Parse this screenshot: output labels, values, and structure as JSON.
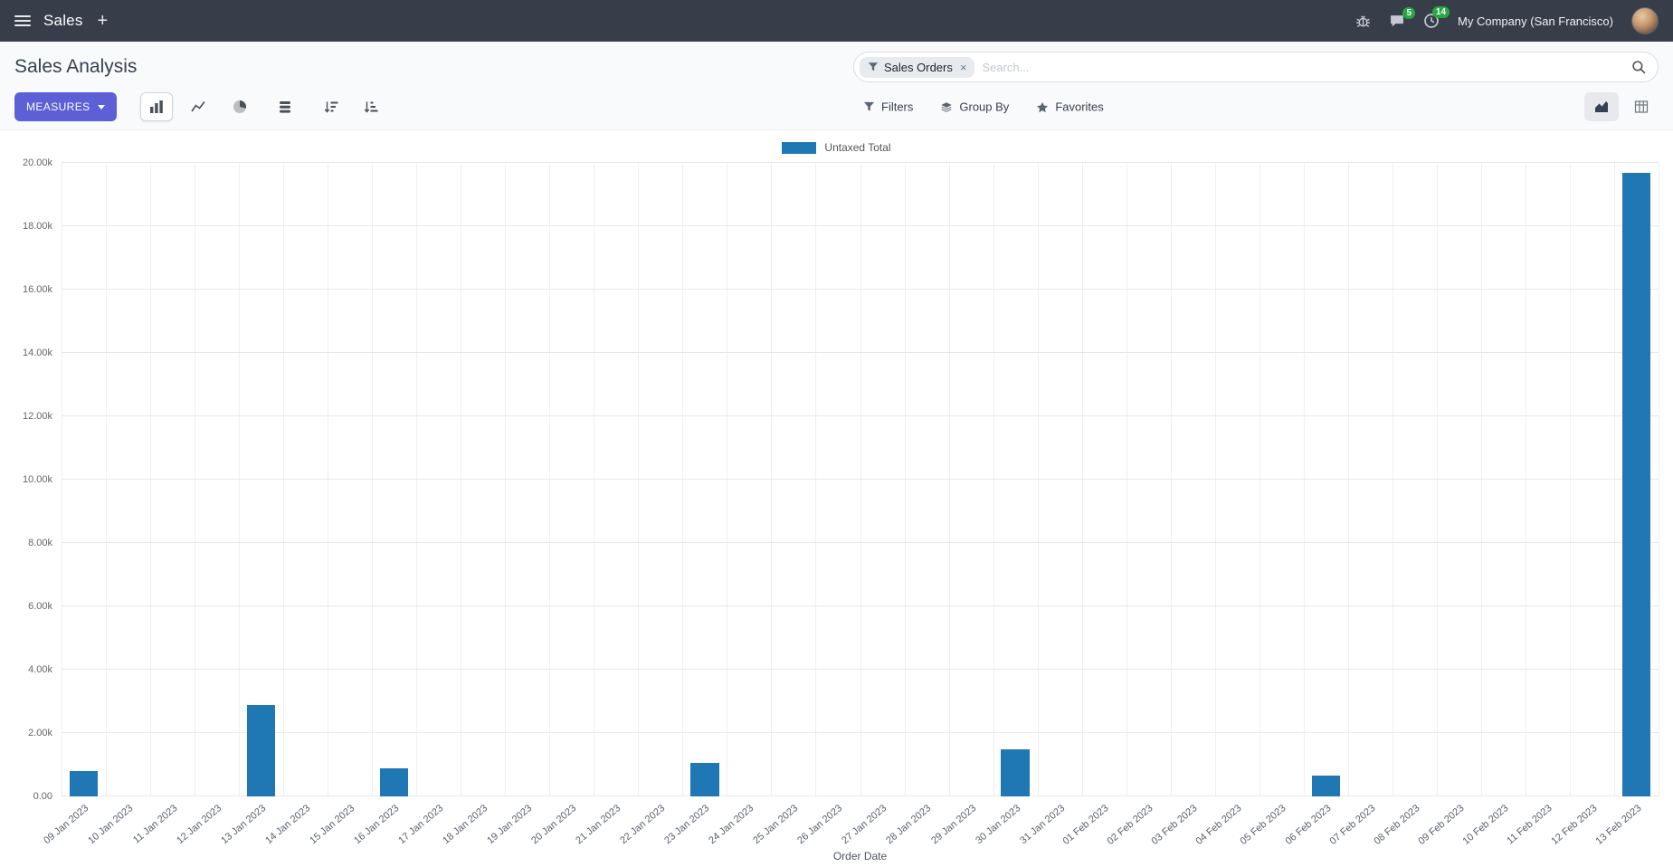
{
  "colors": {
    "topbar": "#373e4a",
    "accent": "#5d5fd6",
    "bar": "#1f77b4",
    "badge": "#28a745"
  },
  "topbar": {
    "app_name": "Sales",
    "new_label": "+",
    "messages_badge": "5",
    "activities_badge": "14",
    "company": "My Company (San Francisco)"
  },
  "control_panel": {
    "title": "Sales Analysis",
    "measures_label": "MEASURES",
    "search": {
      "facet_label": "Sales Orders",
      "placeholder": "Search...",
      "remove": "×"
    },
    "filters_label": "Filters",
    "group_by_label": "Group By",
    "favorites_label": "Favorites"
  },
  "chart_data": {
    "type": "bar",
    "title": "",
    "legend": [
      "Untaxed Total"
    ],
    "legend_position": "top",
    "grid": true,
    "xlabel": "Order Date",
    "ylabel": "",
    "ylim": [
      0,
      20000
    ],
    "bar_color": "#1f77b4",
    "yticks": [
      {
        "value": 0,
        "label": "0.00"
      },
      {
        "value": 2000,
        "label": "2.00k"
      },
      {
        "value": 4000,
        "label": "4.00k"
      },
      {
        "value": 6000,
        "label": "6.00k"
      },
      {
        "value": 8000,
        "label": "8.00k"
      },
      {
        "value": 10000,
        "label": "10.00k"
      },
      {
        "value": 12000,
        "label": "12.00k"
      },
      {
        "value": 14000,
        "label": "14.00k"
      },
      {
        "value": 16000,
        "label": "16.00k"
      },
      {
        "value": 18000,
        "label": "18.00k"
      },
      {
        "value": 20000,
        "label": "20.00k"
      }
    ],
    "categories": [
      "09 Jan 2023",
      "10 Jan 2023",
      "11 Jan 2023",
      "12 Jan 2023",
      "13 Jan 2023",
      "14 Jan 2023",
      "15 Jan 2023",
      "16 Jan 2023",
      "17 Jan 2023",
      "18 Jan 2023",
      "19 Jan 2023",
      "20 Jan 2023",
      "21 Jan 2023",
      "22 Jan 2023",
      "23 Jan 2023",
      "24 Jan 2023",
      "25 Jan 2023",
      "26 Jan 2023",
      "27 Jan 2023",
      "28 Jan 2023",
      "29 Jan 2023",
      "30 Jan 2023",
      "31 Jan 2023",
      "01 Feb 2023",
      "02 Feb 2023",
      "03 Feb 2023",
      "04 Feb 2023",
      "05 Feb 2023",
      "06 Feb 2023",
      "07 Feb 2023",
      "08 Feb 2023",
      "09 Feb 2023",
      "10 Feb 2023",
      "11 Feb 2023",
      "12 Feb 2023",
      "13 Feb 2023"
    ],
    "values": [
      800,
      0,
      0,
      0,
      2900,
      0,
      0,
      900,
      0,
      0,
      0,
      0,
      0,
      0,
      1050,
      0,
      0,
      0,
      0,
      0,
      0,
      1500,
      0,
      0,
      0,
      0,
      0,
      0,
      650,
      0,
      0,
      0,
      0,
      0,
      0,
      19700
    ]
  }
}
